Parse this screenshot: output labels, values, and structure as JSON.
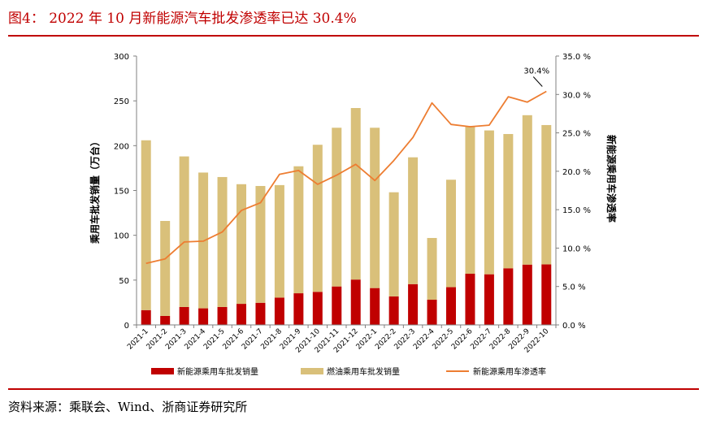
{
  "header": {
    "title": "图4：  2022 年 10 月新能源汽车批发渗透率已达 30.4%"
  },
  "footer": {
    "source": "资料来源：乘联会、Wind、浙商证券研究所"
  },
  "colors": {
    "rule": "#c00000",
    "nev_bar": "#c00000",
    "fuel_bar": "#d9c07a",
    "line": "#ed7d31"
  },
  "chart_data": {
    "type": "bar",
    "stacked": true,
    "categories": [
      "2021-1",
      "2021-2",
      "2021-3",
      "2021-4",
      "2021-5",
      "2021-6",
      "2021-7",
      "2021-8",
      "2021-9",
      "2021-10",
      "2021-11",
      "2021-12",
      "2022-1",
      "2022-2",
      "2022-3",
      "2022-4",
      "2022-5",
      "2022-6",
      "2022-7",
      "2022-8",
      "2022-9",
      "2022-10"
    ],
    "series": [
      {
        "name": "新能源乘用车批发销量",
        "type": "bar",
        "axis": "left",
        "values": [
          16.5,
          10.0,
          20.0,
          18.5,
          20.0,
          23.5,
          24.7,
          30.5,
          35.3,
          36.9,
          42.9,
          50.6,
          41.1,
          31.8,
          45.5,
          28.1,
          42.1,
          57.1,
          56.5,
          63.2,
          67.3,
          67.5
        ]
      },
      {
        "name": "燃油乘用车批发销量",
        "type": "bar",
        "axis": "left",
        "values": [
          189.5,
          106.0,
          168.0,
          151.5,
          145.0,
          133.5,
          130.3,
          125.5,
          141.7,
          164.1,
          177.1,
          191.4,
          178.9,
          116.2,
          141.5,
          68.9,
          119.9,
          164.9,
          160.5,
          149.8,
          166.7,
          155.5
        ]
      },
      {
        "name": "新能源乘用车渗透率",
        "type": "line",
        "axis": "right",
        "values": [
          8.0,
          8.6,
          10.8,
          10.9,
          12.1,
          14.9,
          15.9,
          19.6,
          20.1,
          18.3,
          19.5,
          20.9,
          18.8,
          21.4,
          24.4,
          28.9,
          26.1,
          25.8,
          26.0,
          29.7,
          29.0,
          30.4
        ]
      }
    ],
    "ylabel": "乘用车批发销量（万台）",
    "y2label": "新能源乘用车渗透率",
    "ylim": [
      0,
      300
    ],
    "yticks": [
      "0",
      "50",
      "100",
      "150",
      "200",
      "250",
      "300"
    ],
    "y2lim": [
      0,
      35
    ],
    "y2ticks": [
      "0.0 %",
      "5.0 %",
      "10.0 %",
      "15.0 %",
      "20.0 %",
      "25.0 %",
      "30.0 %",
      "35.0 %"
    ],
    "annotation": "30.4%",
    "grid": false,
    "legend_position": "bottom"
  }
}
